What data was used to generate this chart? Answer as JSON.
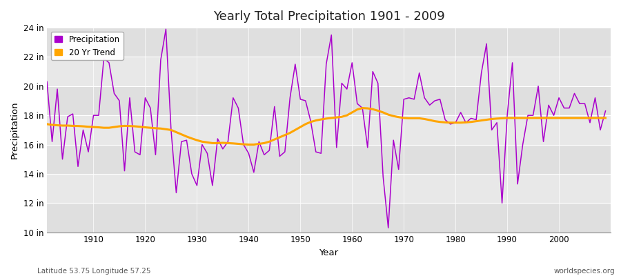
{
  "title": "Yearly Total Precipitation 1901 - 2009",
  "xlabel": "Year",
  "ylabel": "Precipitation",
  "years": [
    1901,
    1902,
    1903,
    1904,
    1905,
    1906,
    1907,
    1908,
    1909,
    1910,
    1911,
    1912,
    1913,
    1914,
    1915,
    1916,
    1917,
    1918,
    1919,
    1920,
    1921,
    1922,
    1923,
    1924,
    1925,
    1926,
    1927,
    1928,
    1929,
    1930,
    1931,
    1932,
    1933,
    1934,
    1935,
    1936,
    1937,
    1938,
    1939,
    1940,
    1941,
    1942,
    1943,
    1944,
    1945,
    1946,
    1947,
    1948,
    1949,
    1950,
    1951,
    1952,
    1953,
    1954,
    1955,
    1956,
    1957,
    1958,
    1959,
    1960,
    1961,
    1962,
    1963,
    1964,
    1965,
    1966,
    1967,
    1968,
    1969,
    1970,
    1971,
    1972,
    1973,
    1974,
    1975,
    1976,
    1977,
    1978,
    1979,
    1980,
    1981,
    1982,
    1983,
    1984,
    1985,
    1986,
    1987,
    1988,
    1989,
    1990,
    1991,
    1992,
    1993,
    1994,
    1995,
    1996,
    1997,
    1998,
    1999,
    2000,
    2001,
    2002,
    2003,
    2004,
    2005,
    2006,
    2007,
    2008,
    2009
  ],
  "precipitation": [
    20.3,
    16.2,
    19.8,
    15.0,
    17.9,
    18.1,
    14.5,
    17.0,
    15.5,
    18.0,
    18.0,
    21.9,
    21.6,
    19.5,
    19.0,
    14.2,
    19.2,
    15.5,
    15.3,
    19.2,
    18.5,
    15.3,
    21.8,
    23.9,
    17.0,
    12.7,
    16.2,
    16.3,
    14.0,
    13.2,
    16.0,
    15.4,
    13.2,
    16.4,
    15.7,
    16.2,
    19.2,
    18.5,
    16.0,
    15.4,
    14.1,
    16.2,
    15.3,
    15.6,
    18.6,
    15.2,
    15.5,
    19.2,
    21.5,
    19.1,
    19.0,
    17.6,
    15.5,
    15.4,
    21.5,
    23.5,
    15.8,
    20.2,
    19.8,
    21.6,
    18.8,
    18.5,
    15.8,
    21.0,
    20.2,
    13.8,
    10.3,
    16.3,
    14.3,
    19.1,
    19.2,
    19.1,
    20.9,
    19.2,
    18.7,
    19.0,
    19.1,
    17.7,
    17.4,
    17.5,
    18.2,
    17.5,
    17.8,
    17.7,
    20.9,
    22.9,
    17.0,
    17.5,
    12.0,
    18.0,
    21.6,
    13.3,
    16.0,
    18.0,
    18.0,
    20.0,
    16.2,
    18.7,
    18.0,
    19.2,
    18.5,
    18.5,
    19.5,
    18.8,
    18.8,
    17.5,
    19.2,
    17.0,
    18.3
  ],
  "trend": [
    17.4,
    17.35,
    17.32,
    17.3,
    17.3,
    17.28,
    17.27,
    17.25,
    17.22,
    17.2,
    17.18,
    17.15,
    17.15,
    17.2,
    17.25,
    17.28,
    17.27,
    17.25,
    17.22,
    17.18,
    17.15,
    17.12,
    17.1,
    17.05,
    17.0,
    16.85,
    16.7,
    16.55,
    16.42,
    16.3,
    16.2,
    16.15,
    16.1,
    16.1,
    16.12,
    16.1,
    16.08,
    16.05,
    16.02,
    16.0,
    16.0,
    16.05,
    16.1,
    16.2,
    16.35,
    16.5,
    16.65,
    16.8,
    17.0,
    17.2,
    17.4,
    17.55,
    17.65,
    17.72,
    17.78,
    17.82,
    17.86,
    17.9,
    18.0,
    18.2,
    18.4,
    18.5,
    18.48,
    18.42,
    18.32,
    18.2,
    18.05,
    17.95,
    17.88,
    17.82,
    17.8,
    17.8,
    17.8,
    17.75,
    17.68,
    17.6,
    17.55,
    17.52,
    17.5,
    17.5,
    17.5,
    17.52,
    17.55,
    17.6,
    17.65,
    17.7,
    17.75,
    17.78,
    17.8,
    17.82,
    17.82,
    17.82,
    17.82,
    17.82,
    17.82,
    17.82,
    17.82,
    17.82,
    17.82,
    17.82,
    17.82,
    17.82,
    17.82,
    17.82,
    17.82,
    17.82,
    17.82,
    17.82,
    17.82
  ],
  "precip_color": "#AA00CC",
  "trend_color": "#FFA500",
  "fig_bg_color": "#ffffff",
  "plot_bg_color": "#e8e8e8",
  "grid_color": "#ffffff",
  "ylim": [
    10,
    24
  ],
  "yticks": [
    10,
    12,
    14,
    16,
    18,
    20,
    22,
    24
  ],
  "ytick_labels": [
    "10 in",
    "12 in",
    "14 in",
    "16 in",
    "18 in",
    "20 in",
    "22 in",
    "24 in"
  ],
  "xticks": [
    1910,
    1920,
    1930,
    1940,
    1950,
    1960,
    1970,
    1980,
    1990,
    2000
  ],
  "footnote_left": "Latitude 53.75 Longitude 57.25",
  "footnote_right": "worldspecies.org",
  "legend_labels": [
    "Precipitation",
    "20 Yr Trend"
  ]
}
